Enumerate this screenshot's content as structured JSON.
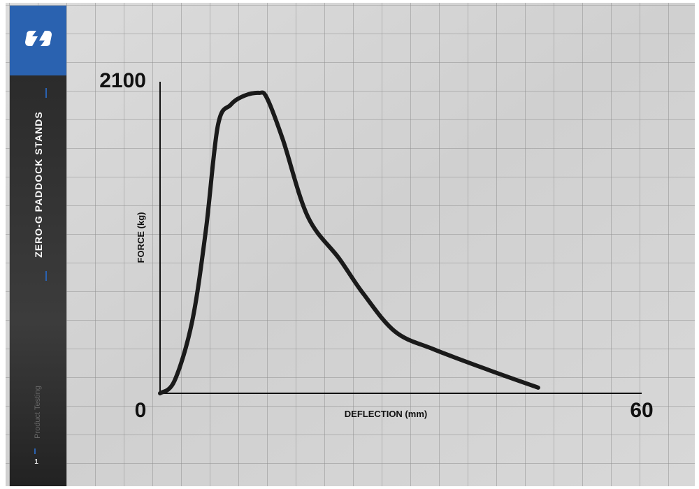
{
  "sidebar": {
    "title": "ZERO-G PADDOCK STANDS",
    "section": "Product Testing",
    "page": "1"
  },
  "chart_data": {
    "type": "line",
    "x_label": "DEFLECTION (mm)",
    "y_label": "FORCE (kg)",
    "x": [
      0,
      1.8,
      4,
      5.7,
      7.2,
      8.8,
      10.5,
      12.3,
      13.3,
      15.3,
      18.4,
      22.3,
      25.3,
      29.3,
      34.1,
      41,
      47.1
    ],
    "values": [
      0,
      84,
      483,
      1092,
      1796,
      1936,
      1997,
      2016,
      1983,
      1702,
      1186,
      905,
      670,
      413,
      295,
      155,
      38
    ],
    "color": "#1a1a1a",
    "xlim": [
      0,
      60
    ],
    "ylim": [
      0,
      2100
    ],
    "xticks": [
      0,
      60
    ],
    "yticks": [
      2100
    ]
  }
}
